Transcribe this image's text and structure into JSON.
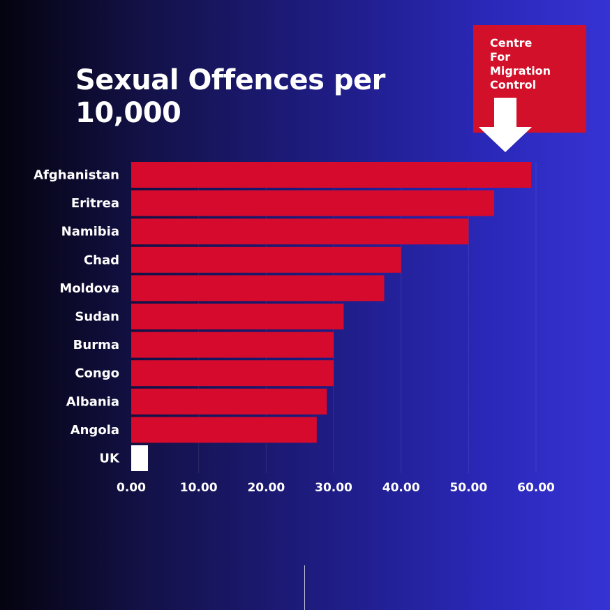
{
  "logo": {
    "lines": [
      "Centre",
      "For",
      "Migration",
      "Control"
    ],
    "box_color": "#d2102a",
    "icon": "arrow-down-icon"
  },
  "colors": {
    "bar": "#d50a2c",
    "highlight_bar": "#ffffff",
    "text": "#ffffff"
  },
  "chart_data": {
    "type": "bar",
    "orientation": "horizontal",
    "title": "Sexual Offences per 10,000",
    "xlabel": "",
    "ylabel": "",
    "categories": [
      "Afghanistan",
      "Eritrea",
      "Namibia",
      "Chad",
      "Moldova",
      "Sudan",
      "Burma",
      "Congo",
      "Albania",
      "Angola",
      "UK"
    ],
    "values": [
      59.3,
      53.8,
      50.0,
      40.0,
      37.5,
      31.5,
      30.0,
      30.0,
      29.0,
      27.5,
      2.5
    ],
    "bar_colors": [
      "#d50a2c",
      "#d50a2c",
      "#d50a2c",
      "#d50a2c",
      "#d50a2c",
      "#d50a2c",
      "#d50a2c",
      "#d50a2c",
      "#d50a2c",
      "#d50a2c",
      "#ffffff"
    ],
    "xlim": [
      0,
      60
    ],
    "xticks": [
      "0.00",
      "10.00",
      "20.00",
      "30.00",
      "40.00",
      "50.00",
      "60.00"
    ],
    "xtick_values": [
      0,
      10,
      20,
      30,
      40,
      50,
      60
    ],
    "grid": "vertical, faint",
    "legend": "none"
  }
}
